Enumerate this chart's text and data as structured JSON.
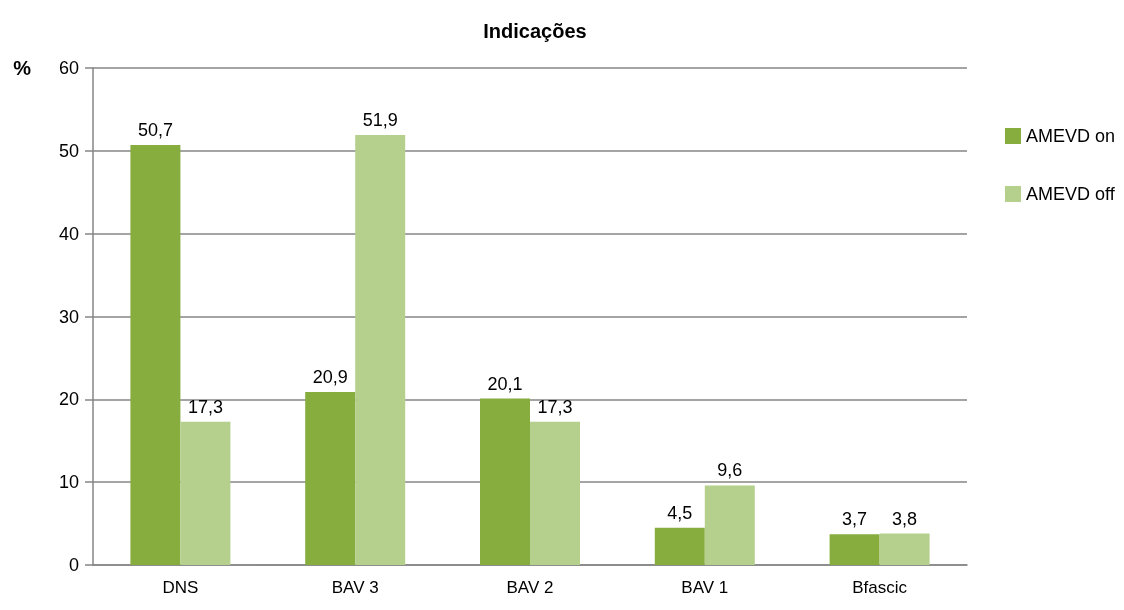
{
  "chart_data": {
    "type": "bar",
    "title": "Indicações",
    "ylabel": "%",
    "categories": [
      "DNS",
      "BAV 3",
      "BAV 2",
      "BAV 1",
      "Bfascic"
    ],
    "series": [
      {
        "name": "AMEVD on",
        "color": "#86ad3e",
        "values": [
          50.7,
          20.9,
          20.1,
          4.5,
          3.7
        ],
        "value_labels": [
          "50,7",
          "20,9",
          "20,1",
          "4,5",
          "3,7"
        ]
      },
      {
        "name": "AMEVD off",
        "color": "#b5cf8c",
        "values": [
          17.3,
          51.9,
          17.3,
          9.6,
          3.8
        ],
        "value_labels": [
          "17,3",
          "51,9",
          "17,3",
          "9,6",
          "3,8"
        ]
      }
    ],
    "ylim": [
      0,
      60
    ],
    "yticks": [
      0,
      10,
      20,
      30,
      40,
      50,
      60
    ],
    "grid": "y",
    "legend": "right"
  }
}
